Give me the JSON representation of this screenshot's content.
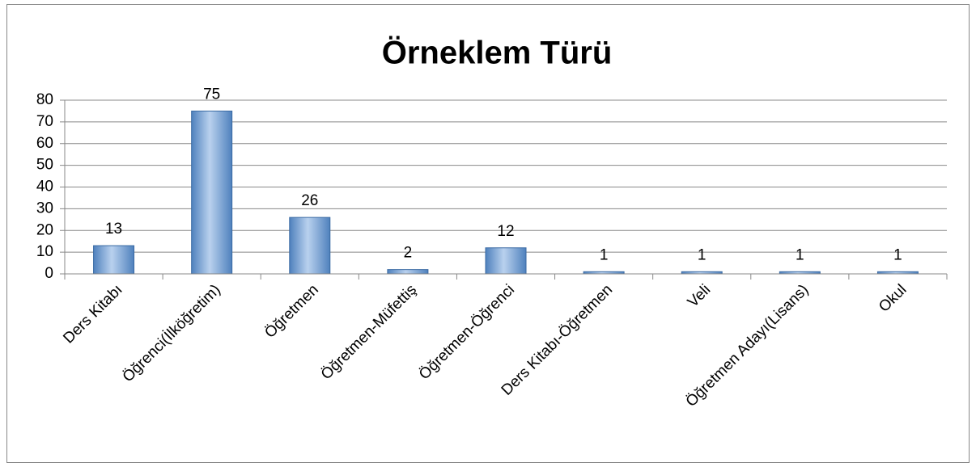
{
  "chart_data": {
    "type": "bar",
    "title": "Örneklem Türü",
    "categories": [
      "Ders Kitabı",
      "Öğrenci(İlköğretim)",
      "Öğretmen",
      "Öğretmen-Müfettiş",
      "Öğretmen-Öğrenci",
      "Ders Kitabı-Öğretmen",
      "Veli",
      "Öğretmen Adayı(Lisans)",
      "Okul"
    ],
    "values": [
      13,
      75,
      26,
      2,
      12,
      1,
      1,
      1,
      1
    ],
    "color": "#4f81bd",
    "ylim": [
      0,
      80
    ],
    "yticks": [
      0,
      10,
      20,
      30,
      40,
      50,
      60,
      70,
      80
    ],
    "grid": true
  }
}
